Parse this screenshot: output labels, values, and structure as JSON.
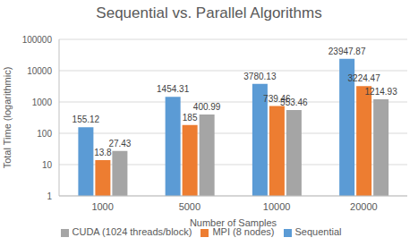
{
  "chart_data": {
    "type": "bar",
    "title": "Sequential vs. Parallel Algorithms",
    "x_label": "Number of Samples",
    "y_label": "Total Time (logarithmic)",
    "categories": [
      "1000",
      "5000",
      "10000",
      "20000"
    ],
    "series": [
      {
        "name": "Sequential",
        "color": "#5B9BD5",
        "values": [
          155.12,
          1454.31,
          3780.13,
          23947.87
        ]
      },
      {
        "name": "MPI (8 nodes)",
        "color": "#ED7D31",
        "values": [
          13.8,
          185,
          739.46,
          3224.47
        ]
      },
      {
        "name": "CUDA (1024 threads/block)",
        "color": "#A5A5A5",
        "values": [
          27.43,
          400.99,
          553.46,
          1214.93
        ]
      }
    ],
    "ylim": [
      1,
      100000
    ],
    "yticks": [
      1,
      10,
      100,
      1000,
      10000,
      100000
    ],
    "log": "y",
    "grid": true,
    "legend": "bottom",
    "data_labels": true
  }
}
